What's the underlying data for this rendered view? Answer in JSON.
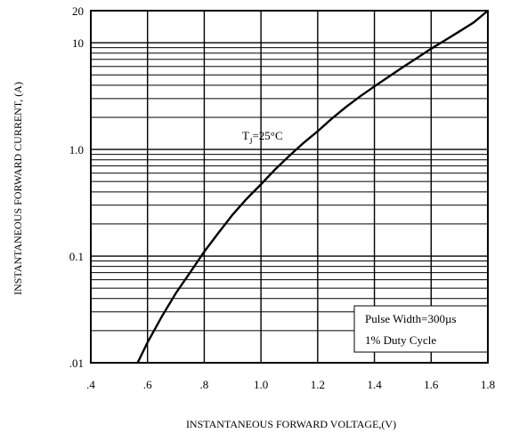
{
  "chart_data": {
    "type": "line",
    "xlabel": "INSTANTANEOUS FORWARD VOLTAGE,(V)",
    "ylabel": "INSTANTANEOUS FORWARD CURRENT, (A)",
    "xlim": [
      0.4,
      1.8
    ],
    "ylim": [
      0.01,
      20
    ],
    "yscale": "log",
    "grid": true,
    "x_ticks": [
      0.4,
      0.6,
      0.8,
      1.0,
      1.2,
      1.4,
      1.6,
      1.8
    ],
    "x_tick_labels": [
      ".4",
      ".6",
      ".8",
      "1.0",
      "1.2",
      "1.4",
      "1.6",
      "1.8"
    ],
    "y_ticks": [
      0.01,
      0.1,
      1.0,
      10,
      20
    ],
    "y_tick_labels": [
      ".01",
      "0.1",
      "1.0",
      "10",
      "20"
    ],
    "series": [
      {
        "x": [
          0.565,
          0.6,
          0.65,
          0.7,
          0.75,
          0.8,
          0.85,
          0.9,
          0.95,
          1.0,
          1.05,
          1.1,
          1.15,
          1.2,
          1.25,
          1.3,
          1.35,
          1.4,
          1.45,
          1.5,
          1.55,
          1.6,
          1.65,
          1.7,
          1.75,
          1.8
        ],
        "y": [
          0.01,
          0.0155,
          0.027,
          0.045,
          0.07,
          0.11,
          0.165,
          0.245,
          0.345,
          0.47,
          0.65,
          0.87,
          1.15,
          1.48,
          1.95,
          2.5,
          3.15,
          3.9,
          4.8,
          5.9,
          7.2,
          8.8,
          10.6,
          12.8,
          15.5,
          20
        ]
      }
    ],
    "annotations": {
      "temperature_main": "T",
      "temperature_sub": "J",
      "temperature_value": "=25°C",
      "pulse_width": "Pulse Width=300µs",
      "duty_cycle": "1% Duty Cycle"
    }
  }
}
